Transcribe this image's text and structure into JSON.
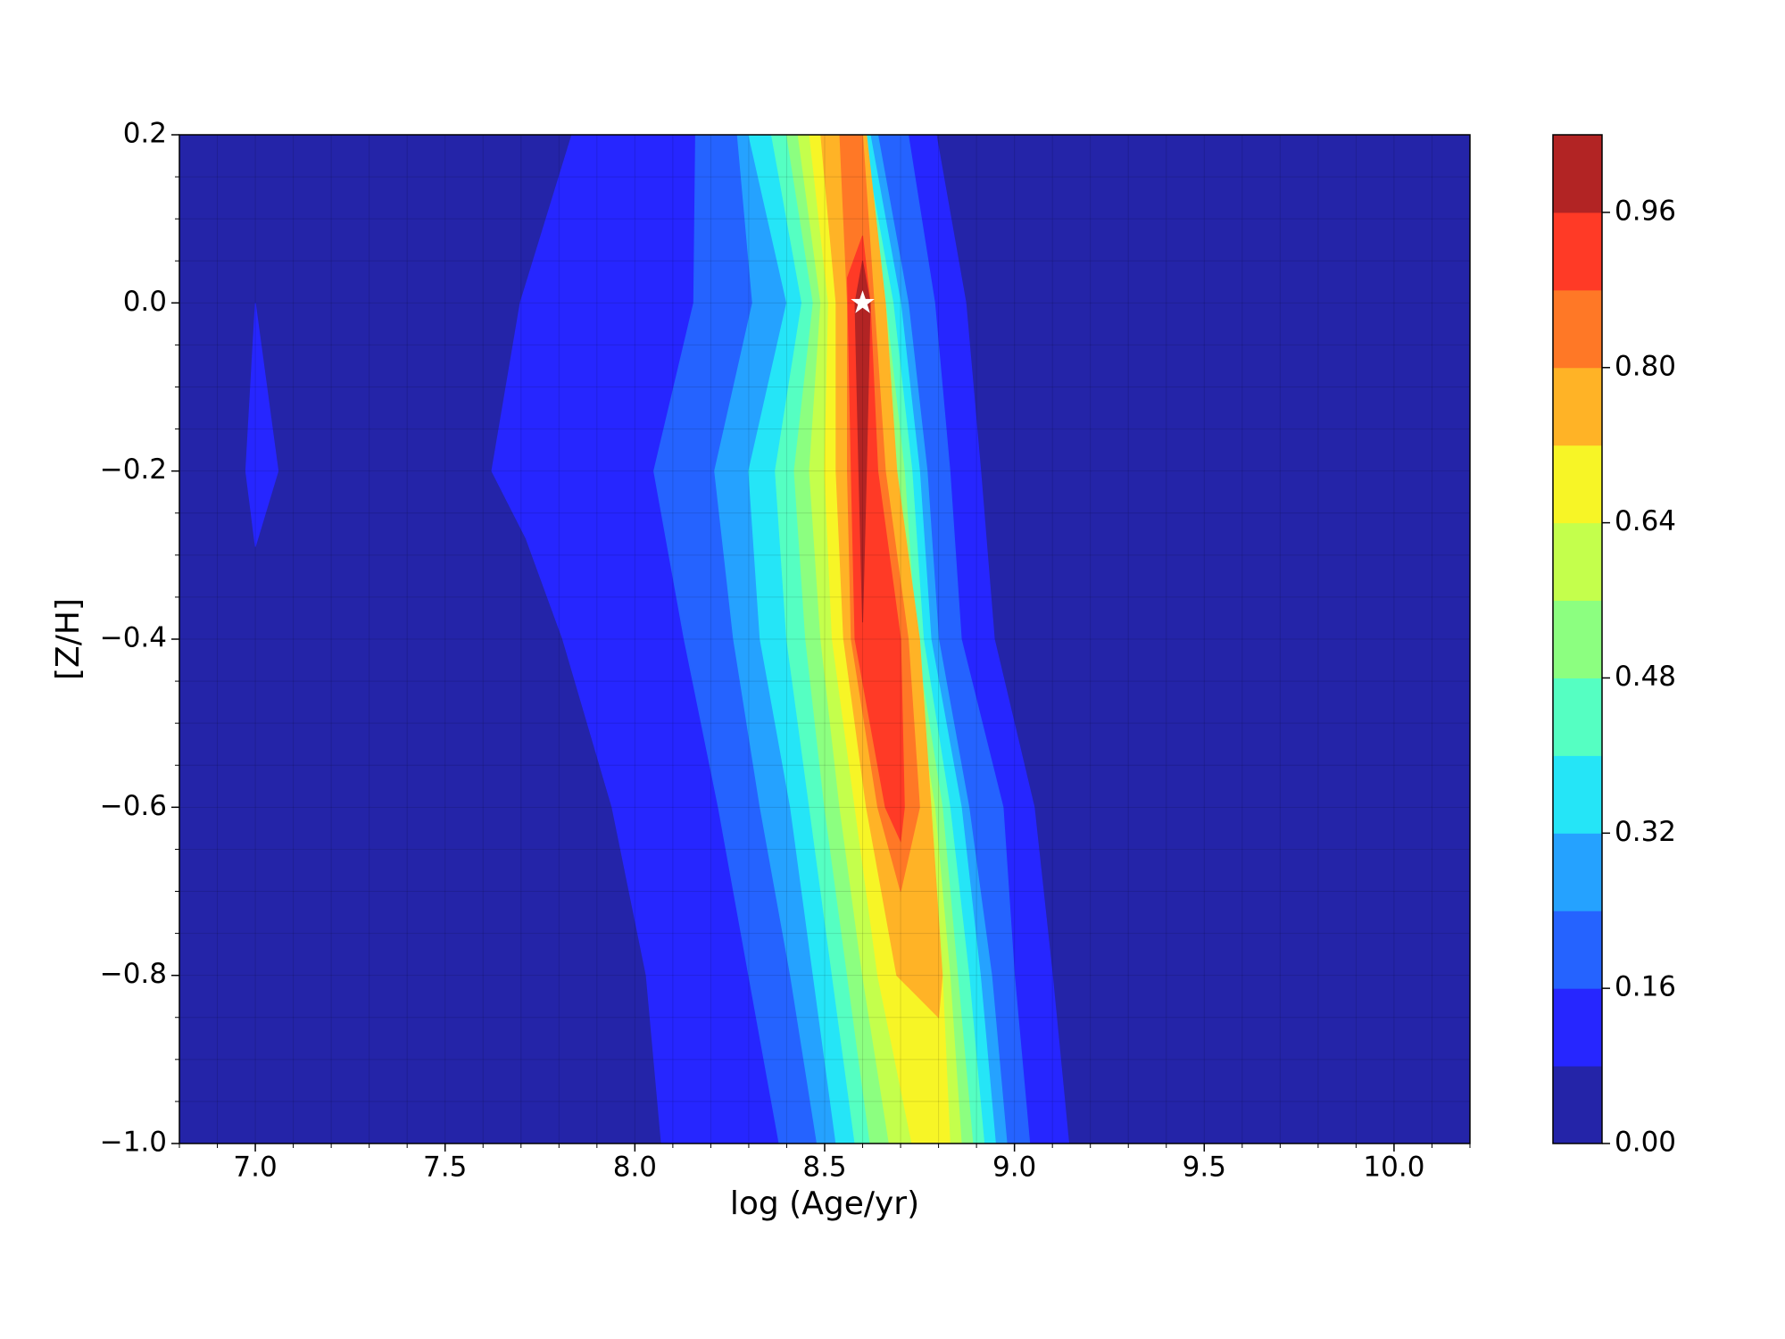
{
  "chart_data": {
    "type": "contourf",
    "xlabel": "log (Age/yr)",
    "ylabel": "[Z/H]",
    "xlim": [
      6.8,
      10.2
    ],
    "ylim": [
      -1.0,
      0.2
    ],
    "xticks": [
      {
        "value": 7.0,
        "label": "7.0"
      },
      {
        "value": 7.5,
        "label": "7.5"
      },
      {
        "value": 8.0,
        "label": "8.0"
      },
      {
        "value": 8.5,
        "label": "8.5"
      },
      {
        "value": 9.0,
        "label": "9.0"
      },
      {
        "value": 9.5,
        "label": "9.5"
      },
      {
        "value": 10.0,
        "label": "10.0"
      }
    ],
    "yticks": [
      {
        "value": -1.0,
        "label": "−1.0"
      },
      {
        "value": -0.8,
        "label": "−0.8"
      },
      {
        "value": -0.6,
        "label": "−0.6"
      },
      {
        "value": -0.4,
        "label": "−0.4"
      },
      {
        "value": -0.2,
        "label": "−0.2"
      },
      {
        "value": 0.0,
        "label": "0.0"
      },
      0.2
    ],
    "minor_grid": {
      "x_step": 0.1,
      "y_step": 0.05
    },
    "levels": [
      0,
      0.08,
      0.16,
      0.24,
      0.32,
      0.4,
      0.48,
      0.56,
      0.64,
      0.72,
      0.8,
      0.88,
      0.96,
      1.04
    ],
    "colors": [
      "#2424a8",
      "#2626ff",
      "#2563ff",
      "#25a2ff",
      "#25e5f7",
      "#55ffc2",
      "#8cff80",
      "#c4ff4c",
      "#f7f526",
      "#ffb326",
      "#ff7826",
      "#ff3a26",
      "#b22424"
    ],
    "colorbar_ticks": [
      {
        "value": 0,
        "label": "0.00"
      },
      {
        "value": 0.16,
        "label": "0.16"
      },
      {
        "value": 0.32,
        "label": "0.32"
      },
      {
        "value": 0.48,
        "label": "0.48"
      },
      {
        "value": 0.64,
        "label": "0.64"
      },
      {
        "value": 0.8,
        "label": "0.80"
      },
      {
        "value": 0.96,
        "label": "0.96"
      }
    ],
    "contours": [
      {
        "level": 0.08,
        "x": [
          6.975,
          7.0,
          7.06,
          7.0
        ],
        "y": [
          -0.2,
          0.0,
          -0.2,
          -0.29
        ]
      },
      {
        "level": 0.08,
        "x": [
          7.834,
          7.698,
          7.623,
          7.713,
          7.81,
          7.94,
          8.03,
          8.07,
          9.143,
          9.1,
          9.052,
          8.947,
          8.911,
          8.872,
          8.794
        ],
        "y": [
          0.2,
          0.0,
          -0.2,
          -0.28,
          -0.4,
          -0.6,
          -0.8,
          -1.0,
          -1.0,
          -0.8,
          -0.6,
          -0.4,
          -0.2,
          0.0,
          0.2
        ]
      },
      {
        "level": 0.16,
        "x": [
          8.16,
          8.155,
          8.05,
          8.13,
          8.22,
          8.3,
          8.38,
          9.04,
          9.0,
          8.97,
          8.86,
          8.83,
          8.79,
          8.72
        ],
        "y": [
          0.2,
          0.0,
          -0.2,
          -0.4,
          -0.6,
          -0.8,
          -1.0,
          -1.0,
          -0.8,
          -0.6,
          -0.4,
          -0.2,
          0.0,
          0.2
        ]
      },
      {
        "level": 0.24,
        "x": [
          8.27,
          8.31,
          8.21,
          8.26,
          8.33,
          8.41,
          8.48,
          8.98,
          8.94,
          8.88,
          8.8,
          8.77,
          8.72,
          8.64
        ],
        "y": [
          0.2,
          0.0,
          -0.2,
          -0.4,
          -0.6,
          -0.8,
          -1.0,
          -1.0,
          -0.8,
          -0.6,
          -0.4,
          -0.2,
          0.0,
          0.2
        ]
      },
      {
        "level": 0.32,
        "x": [
          8.3,
          8.4,
          8.3,
          8.33,
          8.41,
          8.47,
          8.53,
          8.95,
          8.91,
          8.86,
          8.78,
          8.75,
          8.7,
          8.62
        ],
        "y": [
          0.2,
          0.0,
          -0.2,
          -0.4,
          -0.6,
          -0.8,
          -1.0,
          -1.0,
          -0.8,
          -0.6,
          -0.4,
          -0.2,
          0.0,
          0.2
        ]
      },
      {
        "level": 0.4,
        "x": [
          8.36,
          8.44,
          8.37,
          8.4,
          8.46,
          8.52,
          8.58,
          8.92,
          8.88,
          8.83,
          8.76,
          8.73,
          8.68,
          8.6
        ],
        "y": [
          0.2,
          0.0,
          -0.2,
          -0.4,
          -0.6,
          -0.8,
          -1.0,
          -1.0,
          -0.8,
          -0.6,
          -0.4,
          -0.2,
          0.0,
          0.2
        ]
      },
      {
        "level": 0.48,
        "x": [
          8.4,
          8.47,
          8.42,
          8.45,
          8.5,
          8.56,
          8.62,
          8.89,
          8.85,
          8.81,
          8.74,
          8.71,
          8.66,
          8.58
        ],
        "y": [
          0.2,
          0.0,
          -0.2,
          -0.4,
          -0.6,
          -0.8,
          -1.0,
          -1.0,
          -0.8,
          -0.6,
          -0.4,
          -0.2,
          0.0,
          0.2
        ]
      },
      {
        "level": 0.56,
        "x": [
          8.43,
          8.49,
          8.46,
          8.49,
          8.54,
          8.6,
          8.67,
          8.86,
          8.83,
          8.79,
          8.72,
          8.69,
          8.64,
          8.56
        ],
        "y": [
          0.2,
          0.0,
          -0.2,
          -0.4,
          -0.6,
          -0.8,
          -1.0,
          -1.0,
          -0.8,
          -0.6,
          -0.4,
          -0.2,
          0.0,
          0.2
        ]
      },
      {
        "level": 0.64,
        "x": [
          8.46,
          8.51,
          8.5,
          8.52,
          8.58,
          8.64,
          8.73,
          8.83,
          8.81,
          8.77,
          8.7,
          8.67,
          8.62,
          8.54
        ],
        "y": [
          0.2,
          0.0,
          -0.2,
          -0.4,
          -0.6,
          -0.8,
          -1.0,
          -1.0,
          -0.8,
          -0.6,
          -0.4,
          -0.2,
          0.0,
          0.2
        ]
      },
      {
        "level": 0.72,
        "x": [
          8.49,
          8.53,
          8.53,
          8.55,
          8.61,
          8.69,
          8.8,
          8.81,
          8.78,
          8.75,
          8.69,
          8.66,
          8.61
        ],
        "y": [
          0.2,
          0.0,
          -0.2,
          -0.4,
          -0.6,
          -0.8,
          -0.85,
          -0.8,
          -0.6,
          -0.4,
          -0.2,
          0.0,
          0.2
        ]
      },
      {
        "level": 0.8,
        "x": [
          8.54,
          8.56,
          8.56,
          8.57,
          8.64,
          8.7,
          8.75,
          8.72,
          8.66,
          8.63,
          8.6
        ],
        "y": [
          0.2,
          0.0,
          -0.2,
          -0.4,
          -0.6,
          -0.7,
          -0.6,
          -0.4,
          -0.2,
          0.0,
          0.2
        ]
      },
      {
        "level": 0.88,
        "x": [
          8.56,
          8.57,
          8.58,
          8.66,
          8.7,
          8.71,
          8.7,
          8.64,
          8.62,
          8.6
        ],
        "y": [
          0.03,
          -0.2,
          -0.4,
          -0.6,
          -0.64,
          -0.6,
          -0.4,
          -0.2,
          0.0,
          0.08
        ]
      },
      {
        "level": 0.96,
        "x": [
          8.58,
          8.59,
          8.6,
          8.61,
          8.62,
          8.6
        ],
        "y": [
          0.0,
          -0.2,
          -0.38,
          -0.2,
          0.0,
          0.05
        ]
      },
      {
        "level": 1.04,
        "x": [
          8.595,
          8.6,
          8.605,
          8.6
        ],
        "y": [
          0.0,
          -0.1,
          0.0,
          0.02
        ]
      }
    ],
    "marker": {
      "x": 8.6,
      "y": 0.0,
      "color": "#ffffff"
    }
  }
}
